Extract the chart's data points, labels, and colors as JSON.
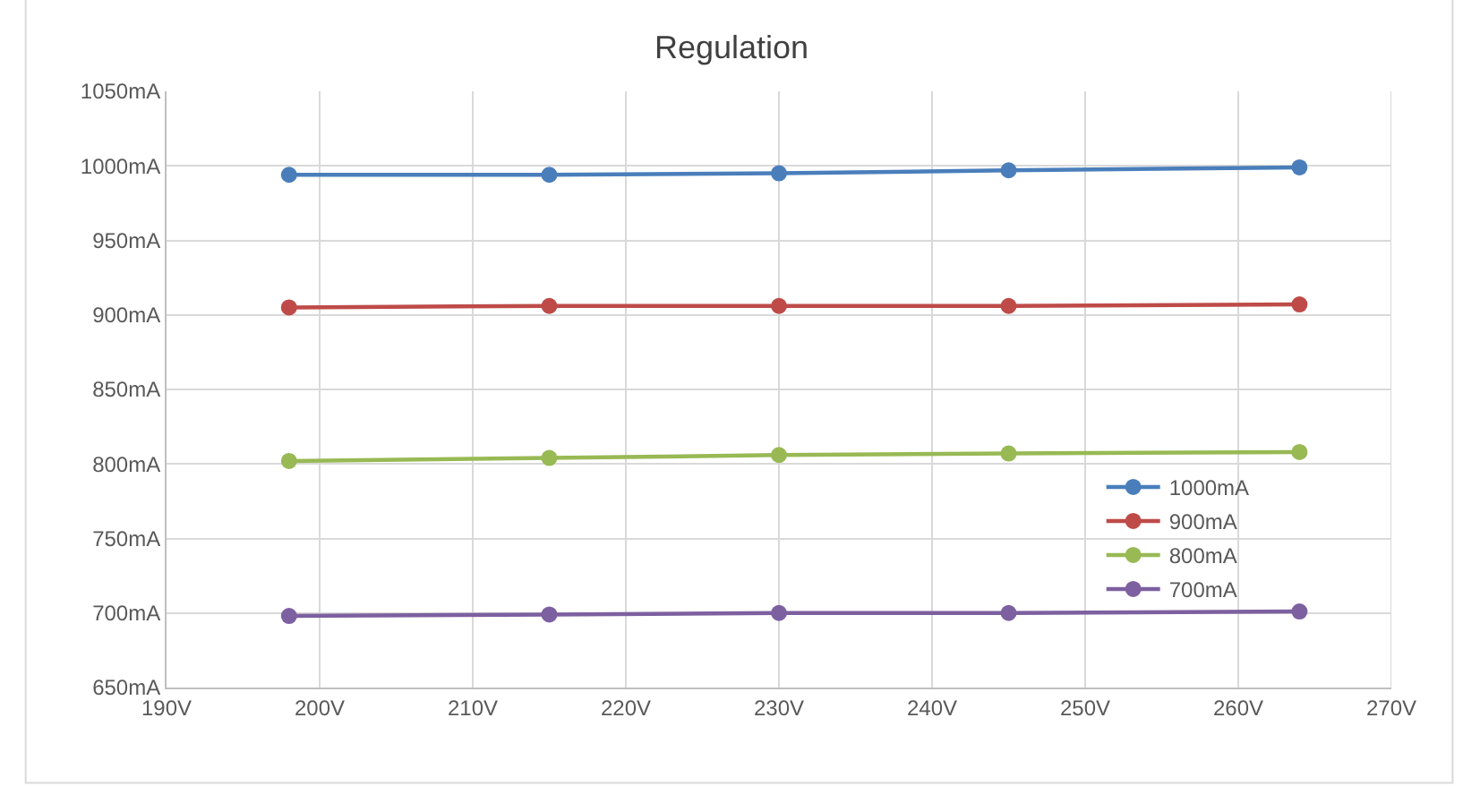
{
  "chart_data": {
    "type": "line",
    "title": "Regulation",
    "x": [
      198,
      215,
      230,
      245,
      264
    ],
    "series": [
      {
        "name": "1000mA",
        "color": "#4a7ebb",
        "values": [
          994,
          994,
          995,
          997,
          999
        ]
      },
      {
        "name": "900mA",
        "color": "#be4b48",
        "values": [
          905,
          906,
          906,
          906,
          907
        ]
      },
      {
        "name": "800mA",
        "color": "#98b954",
        "values": [
          802,
          804,
          806,
          807,
          808
        ]
      },
      {
        "name": "700mA",
        "color": "#7d60a0",
        "values": [
          698,
          699,
          700,
          700,
          701
        ]
      }
    ],
    "xlim": [
      190,
      270
    ],
    "xticks": [
      {
        "value": 190,
        "label": "190V"
      },
      {
        "value": 200,
        "label": "200V"
      },
      {
        "value": 210,
        "label": "210V"
      },
      {
        "value": 220,
        "label": "220V"
      },
      {
        "value": 230,
        "label": "230V"
      },
      {
        "value": 240,
        "label": "240V"
      },
      {
        "value": 250,
        "label": "250V"
      },
      {
        "value": 260,
        "label": "260V"
      },
      {
        "value": 270,
        "label": "270V"
      }
    ],
    "ylim": [
      650,
      1050
    ],
    "yticks": [
      {
        "value": 650,
        "label": "650mA"
      },
      {
        "value": 700,
        "label": "700mA"
      },
      {
        "value": 750,
        "label": "750mA"
      },
      {
        "value": 800,
        "label": "800mA"
      },
      {
        "value": 850,
        "label": "850mA"
      },
      {
        "value": 900,
        "label": "900mA"
      },
      {
        "value": 950,
        "label": "950mA"
      },
      {
        "value": 1000,
        "label": "1000mA"
      },
      {
        "value": 1050,
        "label": "1050mA"
      }
    ],
    "grid": true,
    "legend": "bottom right",
    "marker": "circle",
    "line_style": "solid"
  }
}
